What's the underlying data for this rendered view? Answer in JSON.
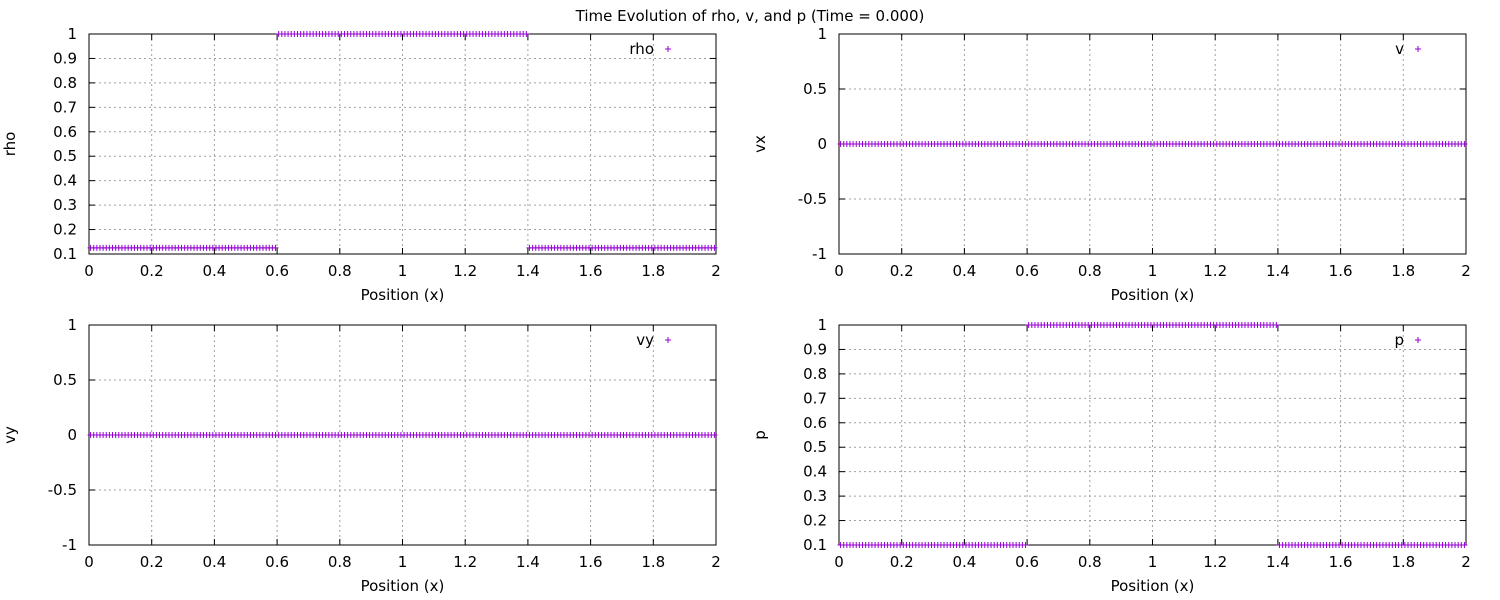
{
  "suptitle": "Time Evolution of rho, v, and p (Time = 0.000)",
  "marker_color": "#9400d3",
  "chart_data": [
    {
      "type": "scatter",
      "name": "rho",
      "xlabel": "Position (x)",
      "ylabel": "rho",
      "legend": "rho",
      "legend_position": "top-right",
      "grid": true,
      "xlim": [
        0,
        2
      ],
      "ylim": [
        0.1,
        1
      ],
      "xticks": [
        "0",
        "0.2",
        "0.4",
        "0.6",
        "0.8",
        "1",
        "1.2",
        "1.4",
        "1.6",
        "1.8",
        "2"
      ],
      "yticks": [
        "0.1",
        "0.2",
        "0.3",
        "0.4",
        "0.5",
        "0.6",
        "0.7",
        "0.8",
        "0.9",
        "1"
      ],
      "series": [
        {
          "x_range": [
            0.005,
            0.595
          ],
          "y": 0.125
        },
        {
          "x_range": [
            0.605,
            1.395
          ],
          "y": 1.0
        },
        {
          "x_range": [
            1.405,
            1.995
          ],
          "y": 0.125
        }
      ]
    },
    {
      "type": "scatter",
      "name": "vx",
      "xlabel": "Position (x)",
      "ylabel": "vx",
      "legend": "v",
      "legend_position": "top-right",
      "grid": true,
      "xlim": [
        0,
        2
      ],
      "ylim": [
        -1,
        1
      ],
      "xticks": [
        "0",
        "0.2",
        "0.4",
        "0.6",
        "0.8",
        "1",
        "1.2",
        "1.4",
        "1.6",
        "1.8",
        "2"
      ],
      "yticks": [
        "-1",
        "-0.5",
        "0",
        "0.5",
        "1"
      ],
      "series": [
        {
          "x_range": [
            0.005,
            1.995
          ],
          "y": 0
        }
      ]
    },
    {
      "type": "scatter",
      "name": "vy",
      "xlabel": "Position (x)",
      "ylabel": "vy",
      "legend": "vy",
      "legend_position": "top-right",
      "grid": true,
      "xlim": [
        0,
        2
      ],
      "ylim": [
        -1,
        1
      ],
      "xticks": [
        "0",
        "0.2",
        "0.4",
        "0.6",
        "0.8",
        "1",
        "1.2",
        "1.4",
        "1.6",
        "1.8",
        "2"
      ],
      "yticks": [
        "-1",
        "-0.5",
        "0",
        "0.5",
        "1"
      ],
      "series": [
        {
          "x_range": [
            0.005,
            1.995
          ],
          "y": 0
        }
      ]
    },
    {
      "type": "scatter",
      "name": "p",
      "xlabel": "Position (x)",
      "ylabel": "p",
      "legend": "p",
      "legend_position": "top-right",
      "grid": true,
      "xlim": [
        0,
        2
      ],
      "ylim": [
        0.1,
        1
      ],
      "xticks": [
        "0",
        "0.2",
        "0.4",
        "0.6",
        "0.8",
        "1",
        "1.2",
        "1.4",
        "1.6",
        "1.8",
        "2"
      ],
      "yticks": [
        "0.1",
        "0.2",
        "0.3",
        "0.4",
        "0.5",
        "0.6",
        "0.7",
        "0.8",
        "0.9",
        "1"
      ],
      "series": [
        {
          "x_range": [
            0.005,
            0.595
          ],
          "y": 0.1
        },
        {
          "x_range": [
            0.605,
            1.395
          ],
          "y": 1.0
        },
        {
          "x_range": [
            1.405,
            1.995
          ],
          "y": 0.1
        }
      ]
    }
  ]
}
